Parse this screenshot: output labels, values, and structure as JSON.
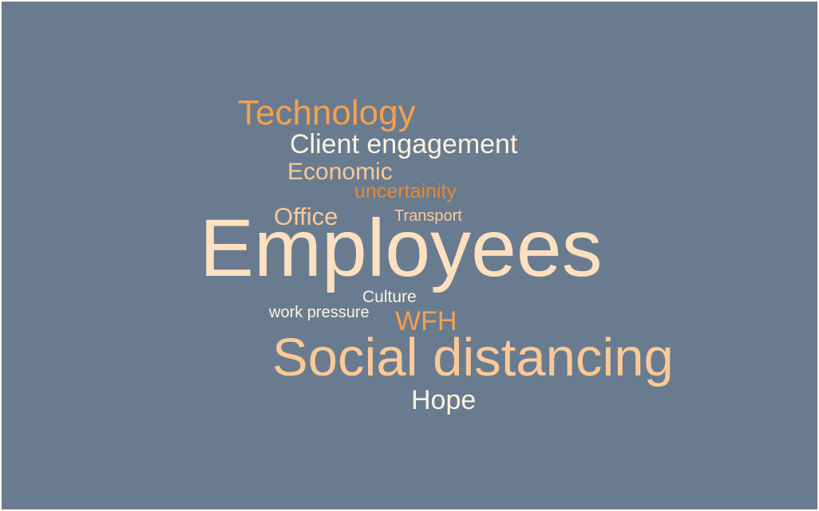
{
  "colors": {
    "background": "#697b8f",
    "orange": "#f5a04e",
    "deep_orange": "#e8892f",
    "peach": "#fbc998",
    "light_peach": "#fde0bf",
    "cream": "#fff2e2"
  },
  "words": {
    "technology": {
      "text": "Technology",
      "color": "#f5a04e"
    },
    "client": {
      "text": "Client engagement",
      "color": "#fff2e2"
    },
    "economic": {
      "text": "Economic",
      "color": "#fbc998"
    },
    "uncertainity": {
      "text": "uncertainity",
      "color": "#e8892f"
    },
    "office": {
      "text": "Office",
      "color": "#fbc998"
    },
    "transport": {
      "text": "Transport",
      "color": "#fbc998"
    },
    "employees": {
      "text": "Employees",
      "color": "#fde0bf"
    },
    "culture": {
      "text": "Culture",
      "color": "#fff2e2"
    },
    "workpressure": {
      "text": "work pressure",
      "color": "#fff2e2"
    },
    "wfh": {
      "text": "WFH",
      "color": "#f5a04e"
    },
    "social": {
      "text": "Social distancing",
      "color": "#fbc998"
    },
    "hope": {
      "text": "Hope",
      "color": "#fff2e2"
    }
  }
}
